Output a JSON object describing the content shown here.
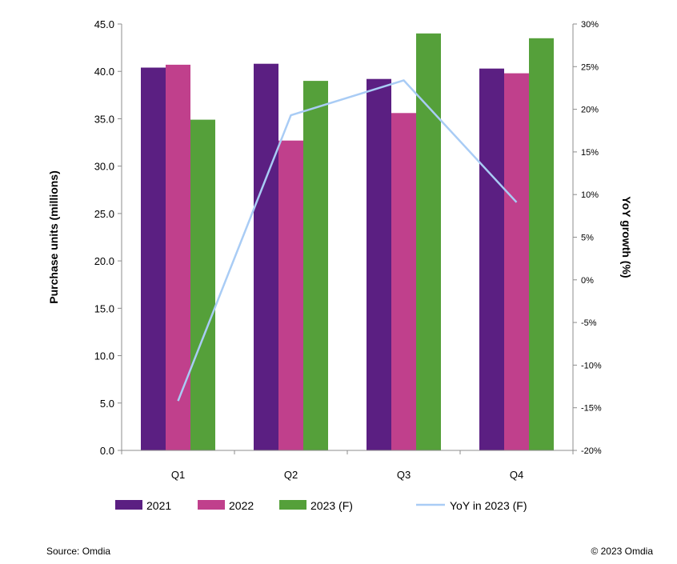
{
  "chart_data": {
    "type": "bar",
    "categories": [
      "Q1",
      "Q2",
      "Q3",
      "Q4"
    ],
    "series": [
      {
        "name": "2021",
        "color": "#5b1f82",
        "values": [
          40.4,
          40.8,
          39.2,
          40.3
        ]
      },
      {
        "name": "2022",
        "color": "#c0408c",
        "values": [
          40.7,
          32.7,
          35.6,
          39.8
        ]
      },
      {
        "name": "2023 (F)",
        "color": "#55a03a",
        "values": [
          34.9,
          39.0,
          44.0,
          43.5
        ]
      }
    ],
    "line_series": {
      "name": "YoY in 2023 (F)",
      "color": "#a9ccf5",
      "axis": "right",
      "values": [
        -14.2,
        19.3,
        23.4,
        9.1
      ]
    },
    "ylabel": "Purchase units (millions)",
    "ylim": [
      0,
      45
    ],
    "yticks": [
      "0.0",
      "5.0",
      "10.0",
      "15.0",
      "20.0",
      "25.0",
      "30.0",
      "35.0",
      "40.0",
      "45.0"
    ],
    "y2label": "YoY growth (%)",
    "y2lim": [
      -20,
      30
    ],
    "y2ticks": [
      "-20%",
      "-15%",
      "-10%",
      "-5%",
      "0%",
      "5%",
      "10%",
      "15%",
      "20%",
      "25%",
      "30%"
    ],
    "legend_position": "bottom"
  },
  "footer": {
    "source": "Source: Omdia",
    "copyright": "© 2023 Omdia"
  }
}
